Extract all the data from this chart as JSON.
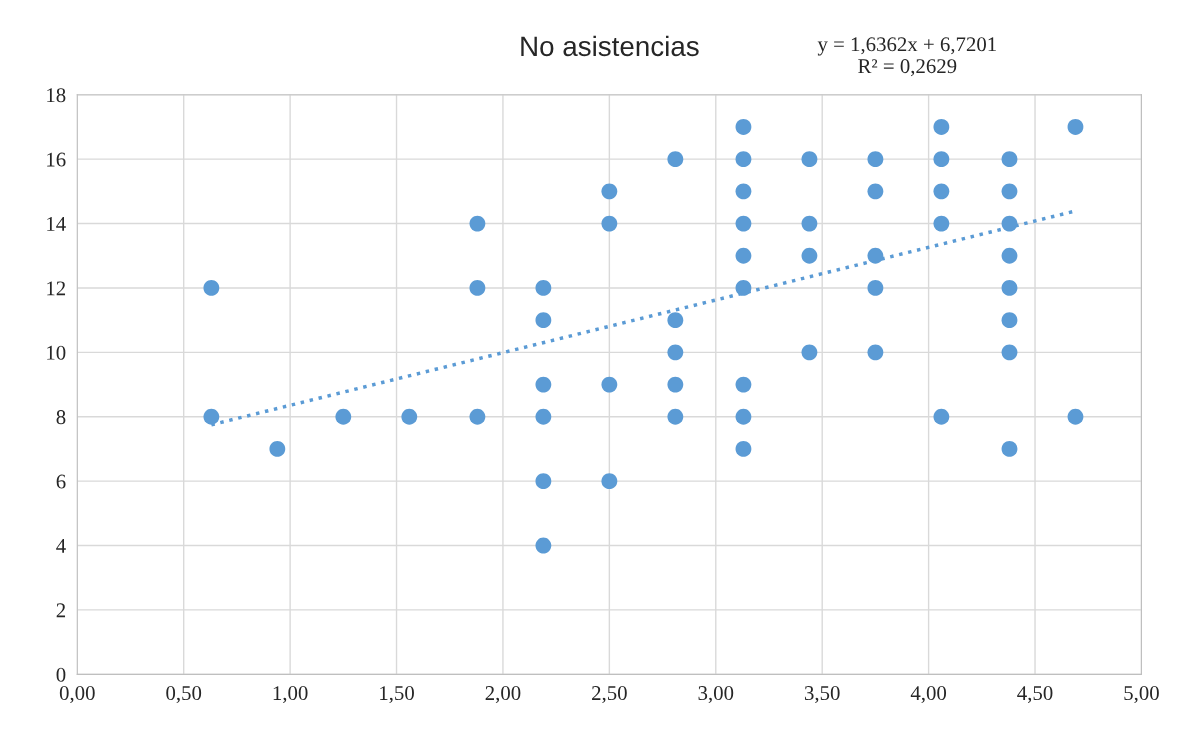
{
  "chart_data": {
    "type": "scatter",
    "title": "No asistencias",
    "annotations": [
      "y = 1,6362x + 6,7201\nR² = 0,2629"
    ],
    "series": [
      {
        "color": "#5b9bd5",
        "marker": "circle",
        "x": [
          0.63,
          0.63,
          0.94,
          1.25,
          1.56,
          1.88,
          1.88,
          1.88,
          2.19,
          2.19,
          2.19,
          2.19,
          2.19,
          2.19,
          2.5,
          2.5,
          2.5,
          2.5,
          2.81,
          2.81,
          2.81,
          2.81,
          2.81,
          3.13,
          3.13,
          3.13,
          3.13,
          3.13,
          3.13,
          3.13,
          3.13,
          3.13,
          3.44,
          3.44,
          3.44,
          3.44,
          3.75,
          3.75,
          3.75,
          3.75,
          3.75,
          4.06,
          4.06,
          4.06,
          4.06,
          4.06,
          4.38,
          4.38,
          4.38,
          4.38,
          4.38,
          4.38,
          4.38,
          4.38,
          4.69,
          4.69
        ],
        "values": [
          12,
          8,
          7,
          8,
          8,
          14,
          12,
          8,
          12,
          11,
          9,
          8,
          6,
          4,
          15,
          14,
          9,
          6,
          16,
          11,
          10,
          9,
          8,
          17,
          16,
          15,
          14,
          13,
          12,
          9,
          8,
          7,
          16,
          14,
          13,
          10,
          16,
          15,
          13,
          12,
          10,
          17,
          16,
          15,
          14,
          8,
          16,
          15,
          14,
          13,
          12,
          11,
          10,
          7,
          17,
          8
        ]
      },
      {
        "type": "line",
        "color": "#5b9bd5",
        "line_style": "dotted",
        "marker": "none",
        "x": [
          0.63,
          4.69
        ],
        "values": [
          7.75,
          14.39
        ]
      }
    ],
    "xlim": [
      0,
      5
    ],
    "xticks": [
      {
        "value": 0,
        "label": "0,00"
      },
      {
        "value": 0.5,
        "label": "0,50"
      },
      {
        "value": 1,
        "label": "1,00"
      },
      {
        "value": 1.5,
        "label": "1,50"
      },
      {
        "value": 2,
        "label": "2,00"
      },
      {
        "value": 2.5,
        "label": "2,50"
      },
      {
        "value": 3,
        "label": "3,00"
      },
      {
        "value": 3.5,
        "label": "3,50"
      },
      {
        "value": 4,
        "label": "4,00"
      },
      {
        "value": 4.5,
        "label": "4,50"
      },
      {
        "value": 5,
        "label": "5,00"
      }
    ],
    "ylim": [
      0,
      18
    ],
    "yticks": [
      0,
      2,
      4,
      6,
      8,
      10,
      12,
      14,
      16,
      18
    ],
    "grid": true
  }
}
